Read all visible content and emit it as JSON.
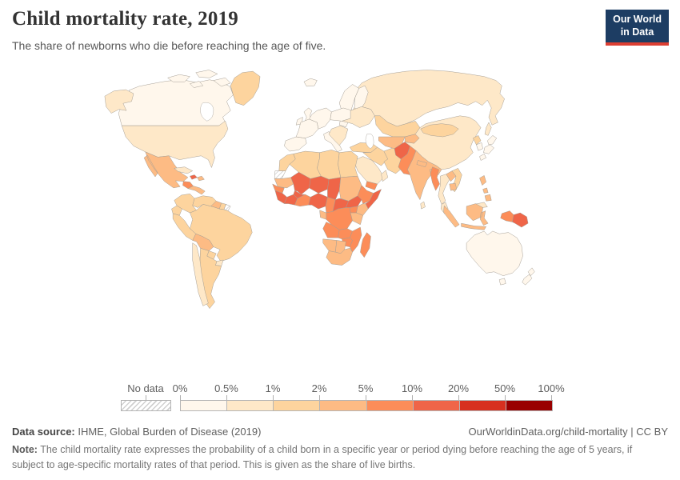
{
  "header": {
    "title": "Child mortality rate, 2019",
    "subtitle": "The share of newborns who die before reaching the age of five."
  },
  "logo": {
    "line1": "Our World",
    "line2": "in Data",
    "bg_color": "#1d3d63",
    "accent_color": "#dc3e32"
  },
  "footer": {
    "source_label": "Data source:",
    "source_text": " IHME, Global Burden of Disease (2019)",
    "link_text": "OurWorldinData.org/child-mortality | CC BY",
    "note_label": "Note:",
    "note_text": " The child mortality rate expresses the probability of a child born in a specific year or period dying before reaching the age of 5 years, if subject to age-specific mortality rates of that period. This is given as the share of live births."
  },
  "chart_data": {
    "type": "choropleth_map",
    "title": "Child mortality rate, 2019",
    "unit": "%",
    "legend": {
      "no_data_label": "No data",
      "tick_labels": [
        "0%",
        "0.5%",
        "1%",
        "2%",
        "5%",
        "10%",
        "20%",
        "50%",
        "100%"
      ],
      "bins": [
        {
          "range": "0-0.5%",
          "color": "#fff7ec"
        },
        {
          "range": "0.5-1%",
          "color": "#fee8c8"
        },
        {
          "range": "1-2%",
          "color": "#fdd49e"
        },
        {
          "range": "2-5%",
          "color": "#fdbb84"
        },
        {
          "range": "5-10%",
          "color": "#fc8d59"
        },
        {
          "range": "10-20%",
          "color": "#ef6548"
        },
        {
          "range": "20-50%",
          "color": "#d7301f"
        },
        {
          "range": "50-100%",
          "color": "#990000"
        }
      ]
    },
    "regions": [
      {
        "name": "Canada",
        "bin": "0-0.5%"
      },
      {
        "name": "Canadian Arctic Islands",
        "bin": "0-0.5%"
      },
      {
        "name": "Greenland",
        "bin": "1-2%"
      },
      {
        "name": "Alaska",
        "bin": "0.5-1%"
      },
      {
        "name": "United States",
        "bin": "0.5-1%"
      },
      {
        "name": "Mexico",
        "bin": "2-5%"
      },
      {
        "name": "Guatemala",
        "bin": "5-10%"
      },
      {
        "name": "Central America",
        "bin": "2-5%"
      },
      {
        "name": "Cuba",
        "bin": "0.5-1%"
      },
      {
        "name": "Haiti",
        "bin": "10-20%"
      },
      {
        "name": "Dominican Republic",
        "bin": "2-5%"
      },
      {
        "name": "Colombia",
        "bin": "1-2%"
      },
      {
        "name": "Venezuela",
        "bin": "1-2%"
      },
      {
        "name": "Guyana",
        "bin": "2-5%"
      },
      {
        "name": "Suriname",
        "bin": "1-2%"
      },
      {
        "name": "French Guiana",
        "bin": "No data"
      },
      {
        "name": "Ecuador",
        "bin": "1-2%"
      },
      {
        "name": "Peru",
        "bin": "1-2%"
      },
      {
        "name": "Brazil",
        "bin": "1-2%"
      },
      {
        "name": "Bolivia",
        "bin": "2-5%"
      },
      {
        "name": "Paraguay",
        "bin": "1-2%"
      },
      {
        "name": "Uruguay",
        "bin": "0.5-1%"
      },
      {
        "name": "Argentina",
        "bin": "1-2%"
      },
      {
        "name": "Chile",
        "bin": "0.5-1%"
      },
      {
        "name": "Russia",
        "bin": "0.5-1%"
      },
      {
        "name": "Iceland",
        "bin": "0-0.5%"
      },
      {
        "name": "United Kingdom",
        "bin": "0-0.5%"
      },
      {
        "name": "Ireland",
        "bin": "0-0.5%"
      },
      {
        "name": "Scandinavia",
        "bin": "0-0.5%"
      },
      {
        "name": "Finland",
        "bin": "0-0.5%"
      },
      {
        "name": "Iberia",
        "bin": "0-0.5%"
      },
      {
        "name": "France",
        "bin": "0-0.5%"
      },
      {
        "name": "Central Europe",
        "bin": "0-0.5%"
      },
      {
        "name": "Italy",
        "bin": "0-0.5%"
      },
      {
        "name": "Poland and Baltics",
        "bin": "0-0.5%"
      },
      {
        "name": "Balkans",
        "bin": "0.5-1%"
      },
      {
        "name": "Ukraine and Belarus",
        "bin": "0.5-1%"
      },
      {
        "name": "Turkey",
        "bin": "1-2%"
      },
      {
        "name": "Syria and Iraq",
        "bin": "1-2%"
      },
      {
        "name": "Iran",
        "bin": "1-2%"
      },
      {
        "name": "Saudi Arabia",
        "bin": "0.5-1%"
      },
      {
        "name": "Yemen",
        "bin": "5-10%"
      },
      {
        "name": "Oman",
        "bin": "0.5-1%"
      },
      {
        "name": "Kazakhstan",
        "bin": "1-2%"
      },
      {
        "name": "Uzbekistan and Turkmenistan",
        "bin": "2-5%"
      },
      {
        "name": "Kyrgyzstan and Tajikistan",
        "bin": "2-5%"
      },
      {
        "name": "Afghanistan",
        "bin": "10-20%"
      },
      {
        "name": "Pakistan",
        "bin": "5-10%"
      },
      {
        "name": "China",
        "bin": "0.5-1%"
      },
      {
        "name": "India",
        "bin": "2-5%"
      },
      {
        "name": "Nepal",
        "bin": "2-5%"
      },
      {
        "name": "Bangladesh",
        "bin": "2-5%"
      },
      {
        "name": "Sri Lanka",
        "bin": "0.5-1%"
      },
      {
        "name": "Mongolia",
        "bin": "1-2%"
      },
      {
        "name": "North Korea",
        "bin": "1-2%"
      },
      {
        "name": "South Korea",
        "bin": "0-0.5%"
      },
      {
        "name": "Japan",
        "bin": "0-0.5%"
      },
      {
        "name": "Myanmar",
        "bin": "5-10%"
      },
      {
        "name": "Thailand",
        "bin": "0.5-1%"
      },
      {
        "name": "Laos",
        "bin": "2-5%"
      },
      {
        "name": "Vietnam",
        "bin": "1-2%"
      },
      {
        "name": "Cambodia",
        "bin": "2-5%"
      },
      {
        "name": "Malaysia",
        "bin": "0.5-1%"
      },
      {
        "name": "Indonesia",
        "bin": "2-5%"
      },
      {
        "name": "Philippines",
        "bin": "2-5%"
      },
      {
        "name": "Indonesian Papua",
        "bin": "5-10%"
      },
      {
        "name": "Papua New Guinea",
        "bin": "10-20%"
      },
      {
        "name": "Australia",
        "bin": "0-0.5%"
      },
      {
        "name": "New Zealand",
        "bin": "0-0.5%"
      },
      {
        "name": "Morocco",
        "bin": "1-2%"
      },
      {
        "name": "Western Sahara",
        "bin": "No data"
      },
      {
        "name": "Algeria",
        "bin": "1-2%"
      },
      {
        "name": "Libya",
        "bin": "1-2%"
      },
      {
        "name": "Egypt",
        "bin": "1-2%"
      },
      {
        "name": "Mauritania",
        "bin": "2-5%"
      },
      {
        "name": "Mali",
        "bin": "10-20%"
      },
      {
        "name": "Burkina Faso",
        "bin": "10-20%"
      },
      {
        "name": "Niger",
        "bin": "10-20%"
      },
      {
        "name": "Chad",
        "bin": "10-20%"
      },
      {
        "name": "Sudan",
        "bin": "2-5%"
      },
      {
        "name": "Senegal",
        "bin": "5-10%"
      },
      {
        "name": "Guinea region",
        "bin": "10-20%"
      },
      {
        "name": "Cote dIvoire",
        "bin": "10-20%"
      },
      {
        "name": "Ghana Togo Benin",
        "bin": "5-10%"
      },
      {
        "name": "Nigeria",
        "bin": "10-20%"
      },
      {
        "name": "Cameroon",
        "bin": "5-10%"
      },
      {
        "name": "Central African Republic",
        "bin": "10-20%"
      },
      {
        "name": "South Sudan",
        "bin": "10-20%"
      },
      {
        "name": "Ethiopia",
        "bin": "5-10%"
      },
      {
        "name": "Somalia",
        "bin": "10-20%"
      },
      {
        "name": "Kenya",
        "bin": "2-5%"
      },
      {
        "name": "Uganda",
        "bin": "5-10%"
      },
      {
        "name": "DR Congo",
        "bin": "5-10%"
      },
      {
        "name": "Congo and Gabon",
        "bin": "2-5%"
      },
      {
        "name": "Tanzania",
        "bin": "2-5%"
      },
      {
        "name": "Angola",
        "bin": "5-10%"
      },
      {
        "name": "Zambia",
        "bin": "5-10%"
      },
      {
        "name": "Mozambique",
        "bin": "5-10%"
      },
      {
        "name": "Zimbabwe",
        "bin": "5-10%"
      },
      {
        "name": "Madagascar",
        "bin": "5-10%"
      },
      {
        "name": "Namibia",
        "bin": "2-5%"
      },
      {
        "name": "Botswana",
        "bin": "2-5%"
      },
      {
        "name": "South Africa",
        "bin": "2-5%"
      }
    ]
  }
}
